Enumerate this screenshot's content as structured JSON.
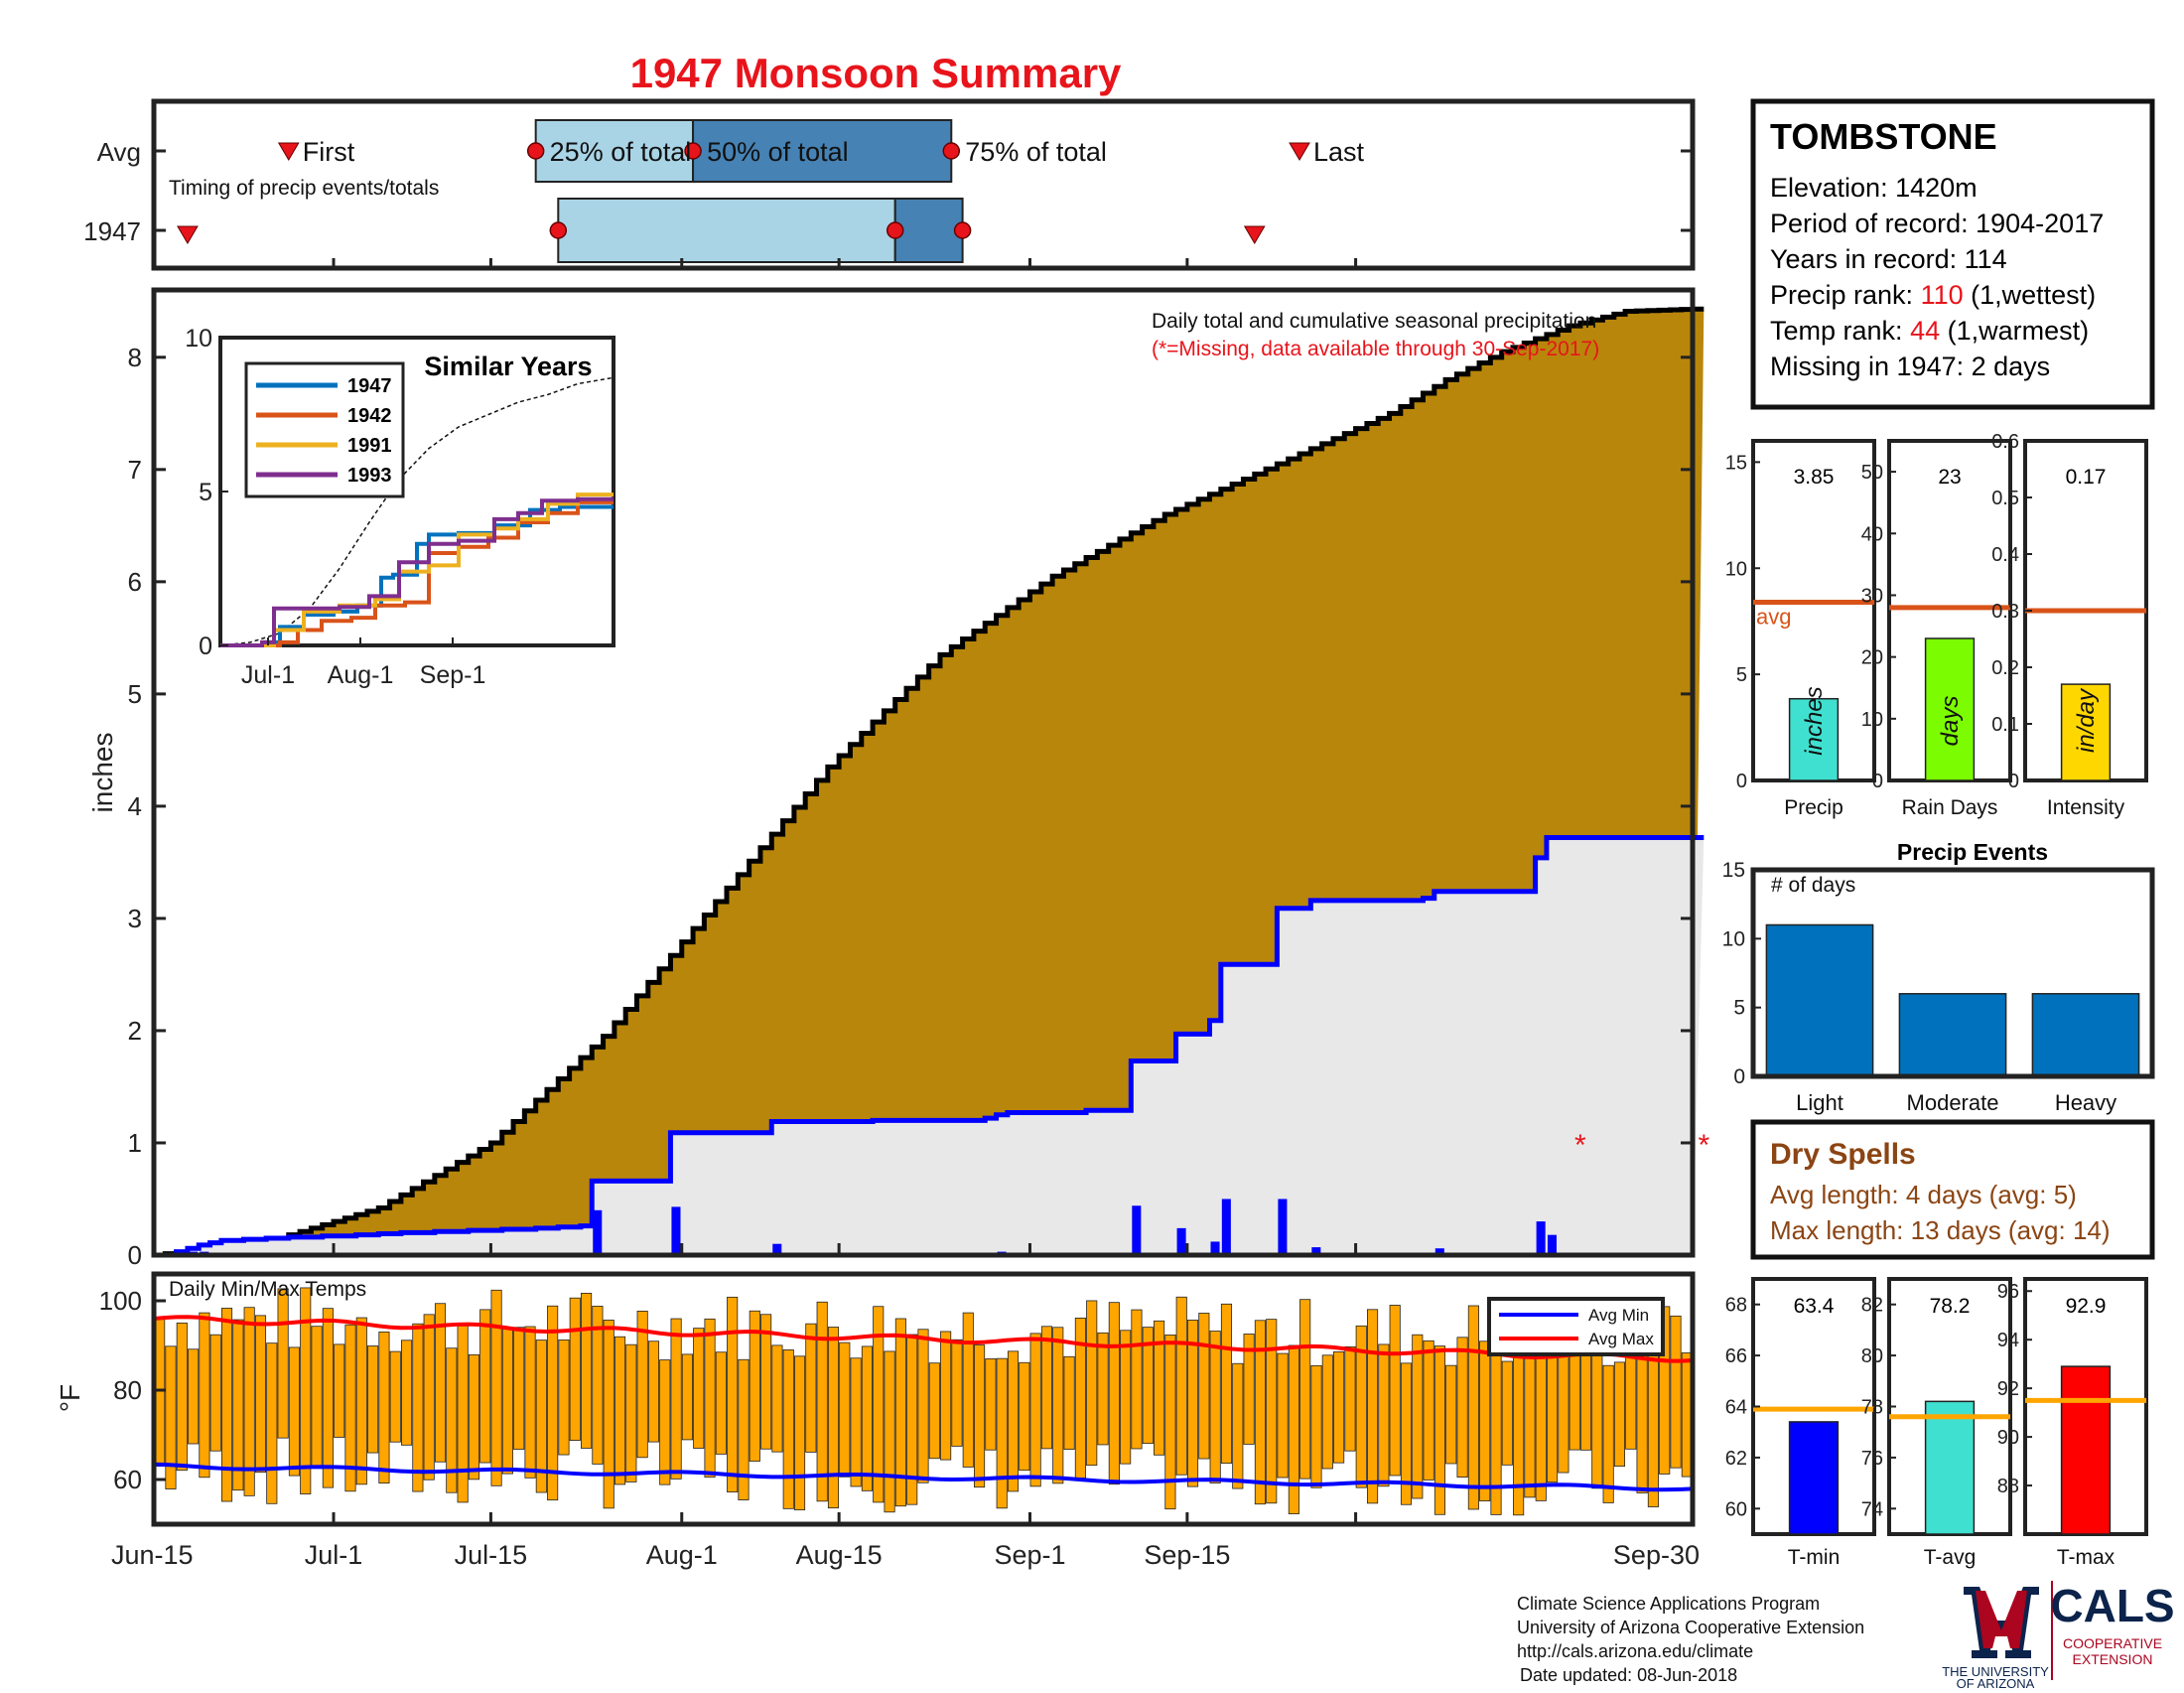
{
  "title": "1947 Monsoon Summary",
  "timing_panel": {
    "row_labels": [
      "Avg",
      "1947"
    ],
    "note": "Timing of precip events/totals",
    "marker_labels": {
      "first": "First",
      "p25": "25% of total",
      "p50": "50% of total",
      "p75": "75% of total",
      "last": "Last"
    },
    "avg": {
      "first": "2017-06-27",
      "p25": "2017-07-19",
      "p50": "2017-08-02",
      "p75": "2017-08-25",
      "last": "2017-09-25"
    },
    "year": {
      "first": "2017-06-18",
      "p25": "2017-07-21",
      "p50": "2017-08-20",
      "p75": "2017-08-26",
      "last": "2017-09-21"
    }
  },
  "station": {
    "name": "TOMBSTONE",
    "elevation": "Elevation: 1420m",
    "period": "Period of record: 1904-2017",
    "years": "Years in record: 114",
    "precip_rank_label": "Precip rank: ",
    "precip_rank": "110",
    "precip_rank_note": " (1,wettest)",
    "temp_rank_label": "Temp rank: ",
    "temp_rank": "44",
    "temp_rank_note": " (1,warmest)",
    "missing": "Missing in 1947: 2 days"
  },
  "main": {
    "ylabel": "inches",
    "note1": "Daily total and cumulative seasonal precipitation",
    "note2": "(*=Missing, data available through 30-Sep-2017)",
    "xticks": [
      "Jun-15",
      "Jul-1",
      "Jul-15",
      "Aug-1",
      "Aug-15",
      "Sep-1",
      "Sep-15",
      "Sep-30"
    ],
    "yticks": [
      "0",
      "1",
      "2",
      "3",
      "4",
      "5",
      "6",
      "7",
      "8"
    ]
  },
  "inset": {
    "title": "Similar Years",
    "yticks": [
      "0",
      "5",
      "10"
    ],
    "xticks": [
      "Jul-1",
      "Aug-1",
      "Sep-1"
    ],
    "legend": [
      "1947",
      "1942",
      "1991",
      "1993"
    ],
    "colors": [
      "#0072BD",
      "#D95319",
      "#EDB120",
      "#7E2F8E"
    ]
  },
  "temp_panel": {
    "title": "Daily Min/Max Temps",
    "ylabel": "°F",
    "yticks": [
      "60",
      "80",
      "100"
    ],
    "legend": [
      "Avg Min",
      "Avg Max"
    ]
  },
  "bars_panel": {
    "precip": {
      "value_text": "3.85",
      "unit": "inches",
      "label": "Precip",
      "yticks": [
        "0",
        "5",
        "10",
        "15"
      ],
      "avg_label": "avg"
    },
    "raindays": {
      "value_text": "23",
      "unit": "days",
      "label": "Rain Days",
      "yticks": [
        "0",
        "10",
        "20",
        "30",
        "40",
        "50"
      ]
    },
    "intensity": {
      "value_text": "0.17",
      "unit": "in/day",
      "label": "Intensity",
      "yticks": [
        "0",
        "0.1",
        "0.2",
        "0.3",
        "0.4",
        "0.5",
        "0.6"
      ]
    }
  },
  "events_panel": {
    "title": "Precip Events",
    "ylabel": "# of days",
    "yticks": [
      "0",
      "5",
      "10",
      "15"
    ],
    "categories": [
      "Light",
      "Moderate",
      "Heavy"
    ]
  },
  "dry_spells": {
    "title": "Dry Spells",
    "avg_length": "Avg length: 4 days (avg: 5)",
    "max_length": "Max length: 13 days (avg: 14)"
  },
  "temp_bars": {
    "tmin": {
      "value_text": "63.4",
      "label": "T-min",
      "yticks": [
        "60",
        "62",
        "64",
        "66",
        "68"
      ]
    },
    "tavg": {
      "value_text": "78.2",
      "label": "T-avg",
      "yticks": [
        "74",
        "76",
        "78",
        "80",
        "82"
      ]
    },
    "tmax": {
      "value_text": "92.9",
      "label": "T-max",
      "yticks": [
        "88",
        "90",
        "92",
        "94",
        "96"
      ]
    }
  },
  "footer": {
    "line1": "Climate Science Applications Program",
    "line2": "University of Arizona Cooperative Extension",
    "line3": "http://cals.arizona.edu/climate",
    "line4": "Date updated: 08-Jun-2018",
    "ua_text1": "THE UNIVERSITY",
    "ua_text2": "OF ARIZONA",
    "cals": "CALS",
    "cals_sub1": "COOPERATIVE",
    "cals_sub2": "EXTENSION"
  },
  "colors": {
    "title_red": "#E8141B",
    "cum_avg_fill": "#B8860B",
    "cum_year_fill": "#E8E8E8",
    "daily_bar": "#0000FF",
    "year_line": "#0000FF",
    "temp_bar": "#FFA500",
    "avg_min": "#0000FF",
    "avg_max": "#FF0000",
    "light_blue": "#A9D4E6",
    "mid_blue": "#4682B4",
    "event_bar": "#0072BD",
    "precip_bar": "#40E0D0",
    "raindays_bar": "#7CFC00",
    "intensity_bar": "#FFD700",
    "avg_line": "#D95319",
    "temp_avg_line": "#FFA500",
    "tmin_bar": "#0000FF",
    "tavg_bar": "#40E0D0",
    "tmax_bar": "#FF0000",
    "dry_brown": "#8B4513",
    "ua_red": "#AB0520",
    "ua_navy": "#0C234B"
  },
  "chart_data": [
    {
      "type": "area",
      "name": "cumulative_precip",
      "x_range": [
        "2017-06-15",
        "2017-09-30"
      ],
      "ylim": [
        0,
        8.6
      ],
      "avg_cumulative_knots": [
        [
          0,
          0
        ],
        [
          10,
          0.12
        ],
        [
          20,
          0.42
        ],
        [
          30,
          1.0
        ],
        [
          40,
          1.95
        ],
        [
          50,
          3.15
        ],
        [
          60,
          4.35
        ],
        [
          70,
          5.35
        ],
        [
          80,
          6.05
        ],
        [
          90,
          6.6
        ],
        [
          100,
          7.05
        ],
        [
          110,
          7.5
        ],
        [
          115,
          7.8
        ],
        [
          120,
          8.05
        ],
        [
          126,
          8.28
        ],
        [
          131,
          8.41
        ],
        [
          137,
          8.43
        ]
      ],
      "year_daily_precip": [
        [
          2,
          0.03
        ],
        [
          3,
          0.03
        ],
        [
          4,
          0.03
        ],
        [
          5,
          0.02
        ],
        [
          6,
          0.02
        ],
        [
          8,
          0.01
        ],
        [
          10,
          0.01
        ],
        [
          12,
          0.01
        ],
        [
          15,
          0.01
        ],
        [
          18,
          0.01
        ],
        [
          20,
          0.01
        ],
        [
          22,
          0.01
        ],
        [
          25,
          0.01
        ],
        [
          28,
          0.01
        ],
        [
          31,
          0.01
        ],
        [
          34,
          0.01
        ],
        [
          36,
          0.01
        ],
        [
          38,
          0.01
        ],
        [
          39,
          0.4
        ],
        [
          46,
          0.43
        ],
        [
          55,
          0.1
        ],
        [
          64,
          0.01
        ],
        [
          74,
          0.02
        ],
        [
          75,
          0.03
        ],
        [
          76,
          0.02
        ],
        [
          83,
          0.02
        ],
        [
          87,
          0.44
        ],
        [
          91,
          0.24
        ],
        [
          94,
          0.12
        ],
        [
          95,
          0.5
        ],
        [
          100,
          0.5
        ],
        [
          103,
          0.07
        ],
        [
          113,
          0.02
        ],
        [
          114,
          0.06
        ],
        [
          123,
          0.3
        ],
        [
          124,
          0.18
        ]
      ],
      "year_total": 3.85,
      "missing_days": [
        127,
        138
      ],
      "missing_marker_y": 1.0
    },
    {
      "type": "line",
      "name": "similar_years",
      "ylim": [
        0,
        10
      ],
      "series": [
        {
          "name": "1947",
          "values": [
            [
              0,
              0
            ],
            [
              15,
              0.1
            ],
            [
              20,
              0.6
            ],
            [
              28,
              1.0
            ],
            [
              38,
              1.1
            ],
            [
              46,
              1.3
            ],
            [
              54,
              2.2
            ],
            [
              58,
              2.3
            ],
            [
              66,
              3.3
            ],
            [
              70,
              3.6
            ],
            [
              80,
              3.65
            ],
            [
              92,
              3.9
            ],
            [
              104,
              4.4
            ],
            [
              114,
              4.5
            ],
            [
              132,
              4.5
            ]
          ]
        },
        {
          "name": "1942",
          "values": [
            [
              0,
              0
            ],
            [
              20,
              0.1
            ],
            [
              26,
              0.5
            ],
            [
              34,
              0.8
            ],
            [
              44,
              0.9
            ],
            [
              52,
              1.3
            ],
            [
              62,
              1.4
            ],
            [
              70,
              3.0
            ],
            [
              80,
              3.2
            ],
            [
              90,
              3.5
            ],
            [
              100,
              4.0
            ],
            [
              110,
              4.3
            ],
            [
              120,
              4.65
            ],
            [
              132,
              4.65
            ]
          ]
        },
        {
          "name": "1991",
          "values": [
            [
              0,
              0
            ],
            [
              18,
              0.5
            ],
            [
              28,
              1.1
            ],
            [
              40,
              1.3
            ],
            [
              52,
              1.5
            ],
            [
              60,
              2.4
            ],
            [
              70,
              2.6
            ],
            [
              80,
              3.6
            ],
            [
              92,
              3.8
            ],
            [
              100,
              4.1
            ],
            [
              110,
              4.6
            ],
            [
              120,
              4.9
            ],
            [
              132,
              4.9
            ]
          ]
        },
        {
          "name": "1993",
          "values": [
            [
              0,
              0
            ],
            [
              14,
              0.1
            ],
            [
              18,
              1.2
            ],
            [
              30,
              1.2
            ],
            [
              40,
              1.25
            ],
            [
              50,
              1.6
            ],
            [
              60,
              2.7
            ],
            [
              70,
              3.3
            ],
            [
              80,
              3.4
            ],
            [
              92,
              4.1
            ],
            [
              100,
              4.3
            ],
            [
              108,
              4.7
            ],
            [
              120,
              4.75
            ],
            [
              132,
              4.75
            ]
          ]
        }
      ],
      "avg_dashed": [
        [
          0,
          0
        ],
        [
          10,
          0.1
        ],
        [
          20,
          0.4
        ],
        [
          30,
          1.2
        ],
        [
          40,
          2.5
        ],
        [
          50,
          4.0
        ],
        [
          60,
          5.4
        ],
        [
          70,
          6.4
        ],
        [
          80,
          7.1
        ],
        [
          90,
          7.5
        ],
        [
          100,
          7.9
        ],
        [
          110,
          8.15
        ],
        [
          120,
          8.5
        ],
        [
          132,
          8.7
        ]
      ]
    },
    {
      "type": "bar",
      "name": "daily_temps",
      "ylim": [
        50,
        106
      ],
      "tmax_seed_range": [
        88,
        104
      ],
      "tmin_seed_range": [
        54,
        70
      ],
      "avg_max_start": 96,
      "avg_max_end": 87,
      "avg_min_start": 63,
      "avg_min_end": 58
    },
    {
      "type": "bar",
      "name": "precip_total",
      "categories": [
        "Precip"
      ],
      "values": [
        3.85
      ],
      "avg": 8.4,
      "ylim": [
        0,
        16
      ]
    },
    {
      "type": "bar",
      "name": "rain_days",
      "categories": [
        "Rain Days"
      ],
      "values": [
        23
      ],
      "avg": 28,
      "ylim": [
        0,
        55
      ]
    },
    {
      "type": "bar",
      "name": "intensity",
      "categories": [
        "Intensity"
      ],
      "values": [
        0.17
      ],
      "avg": 0.3,
      "ylim": [
        0,
        0.6
      ]
    },
    {
      "type": "bar",
      "name": "precip_events",
      "categories": [
        "Light",
        "Moderate",
        "Heavy"
      ],
      "values": [
        11,
        6,
        6
      ],
      "ylim": [
        0,
        15
      ]
    },
    {
      "type": "bar",
      "name": "t_min",
      "categories": [
        "T-min"
      ],
      "values": [
        63.4
      ],
      "avg": 63.9,
      "ylim": [
        59,
        69
      ]
    },
    {
      "type": "bar",
      "name": "t_avg",
      "categories": [
        "T-avg"
      ],
      "values": [
        78.2
      ],
      "avg": 77.6,
      "ylim": [
        73,
        83
      ]
    },
    {
      "type": "bar",
      "name": "t_max",
      "categories": [
        "T-max"
      ],
      "values": [
        92.9
      ],
      "avg": 91.5,
      "ylim": [
        86,
        96.5
      ]
    }
  ]
}
